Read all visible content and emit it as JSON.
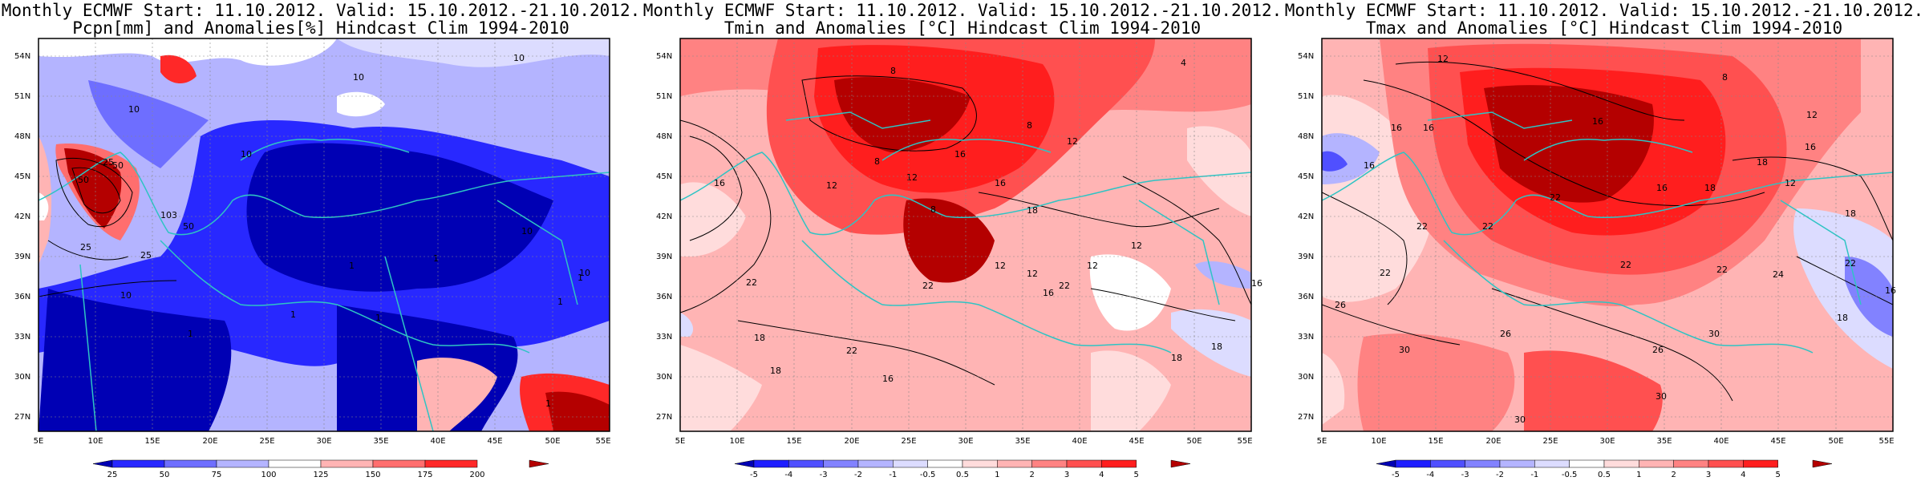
{
  "panels": [
    {
      "title_line1": "Monthly ECMWF Start: 11.10.2012. Valid: 15.10.2012.-21.10.2012.",
      "title_line2": "Pcpn[mm] and Anomalies[%] Hindcast Clim 1994-2010",
      "colorbar_ticks": [
        "25",
        "50",
        "75",
        "100",
        "125",
        "150",
        "175",
        "200"
      ],
      "colorbar_colors": [
        "#0000b4",
        "#2828ff",
        "#6e6eff",
        "#b4b4ff",
        "#ffffff",
        "#ffb4b4",
        "#ff6e6e",
        "#ff2828",
        "#b40000"
      ],
      "contour_labels": [
        "10",
        "10",
        "10",
        "10",
        "10",
        "10",
        "25",
        "25",
        "25",
        "50",
        "50",
        "50",
        "1",
        "1",
        "1",
        "1",
        "1",
        "1",
        "1",
        "1",
        "103",
        "10"
      ]
    },
    {
      "title_line1": "Monthly ECMWF Start: 11.10.2012. Valid: 15.10.2012.-21.10.2012.",
      "title_line2": "Tmin and Anomalies [°C] Hindcast Clim 1994-2010",
      "colorbar_ticks": [
        "-5",
        "-4",
        "-3",
        "-2",
        "-1",
        "-0.5",
        "0.5",
        "1",
        "2",
        "3",
        "4",
        "5"
      ],
      "colorbar_colors": [
        "#0000b4",
        "#1e1eff",
        "#5050ff",
        "#8282ff",
        "#b4b4ff",
        "#dcdcff",
        "#ffffff",
        "#ffdcdc",
        "#ffb4b4",
        "#ff8282",
        "#ff5050",
        "#ff1e1e",
        "#b40000"
      ],
      "contour_labels": [
        "4",
        "8",
        "8",
        "8",
        "8",
        "12",
        "12",
        "12",
        "12",
        "12",
        "16",
        "16",
        "16",
        "16",
        "18",
        "18",
        "18",
        "12",
        "12",
        "22",
        "22",
        "22",
        "16",
        "18",
        "22",
        "16",
        "18"
      ]
    },
    {
      "title_line1": "Monthly ECMWF Start: 11.10.2012. Valid: 15.10.2012.-21.10.2012.",
      "title_line2": "Tmax and Anomalies [°C] Hindcast Clim 1994-2010",
      "colorbar_ticks": [
        "-5",
        "-4",
        "-3",
        "-2",
        "-1",
        "-0.5",
        "0.5",
        "1",
        "2",
        "3",
        "4",
        "5"
      ],
      "colorbar_colors": [
        "#0000b4",
        "#1e1eff",
        "#5050ff",
        "#8282ff",
        "#b4b4ff",
        "#dcdcff",
        "#ffffff",
        "#ffdcdc",
        "#ffb4b4",
        "#ff8282",
        "#ff5050",
        "#ff1e1e",
        "#b40000"
      ],
      "contour_labels": [
        "12",
        "8",
        "12",
        "16",
        "16",
        "16",
        "16",
        "18",
        "18",
        "18",
        "16",
        "16",
        "22",
        "22",
        "22",
        "22",
        "12",
        "22",
        "26",
        "22",
        "30",
        "26",
        "30",
        "26",
        "30",
        "30",
        "16",
        "18",
        "22",
        "24"
      ]
    }
  ],
  "lat_labels": [
    "54N",
    "51N",
    "48N",
    "45N",
    "42N",
    "39N",
    "36N",
    "33N",
    "30N",
    "27N"
  ],
  "lon_labels": [
    "5E",
    "10E",
    "15E",
    "20E",
    "25E",
    "30E",
    "35E",
    "40E",
    "45E",
    "50E",
    "55E"
  ],
  "colors": {
    "coast": "#2ec4c4",
    "contour": "#000000",
    "frame": "#000000"
  }
}
